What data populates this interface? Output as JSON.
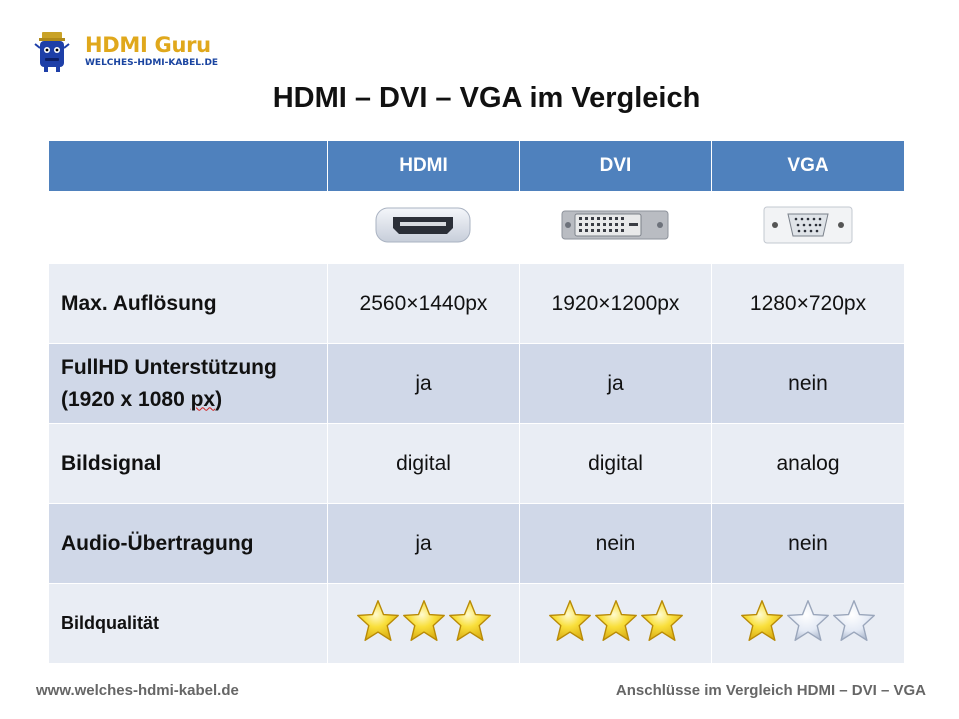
{
  "logo": {
    "title": "HDMI Guru",
    "subtitle": "WELCHES-HDMI-KABEL.DE"
  },
  "title": "HDMI – DVI – VGA im Vergleich",
  "table": {
    "headers": [
      "",
      "HDMI",
      "DVI",
      "VGA"
    ],
    "rows": [
      {
        "label": "Max. Auflösung",
        "values": [
          "2560×1440px",
          "1920×1200px",
          "1280×720px"
        ]
      },
      {
        "label_line1": "FullHD Unterstützung",
        "label_line2_pre": "(1920 x 1080 ",
        "label_line2_wavy": "px",
        "label_line2_post": ")",
        "values": [
          "ja",
          "ja",
          "nein"
        ]
      },
      {
        "label": "Bildsignal",
        "values": [
          "digital",
          "digital",
          "analog"
        ]
      },
      {
        "label": "Audio-Übertragung",
        "values": [
          "ja",
          "nein",
          "nein"
        ]
      },
      {
        "label": "Bildqualität",
        "ratings": [
          3,
          3,
          1
        ],
        "max_rating": 3
      }
    ]
  },
  "colors": {
    "header_bg": "#4f81bd",
    "row_light": "#e9edf4",
    "row_dark": "#d0d8e8",
    "star_filled": "#f7d21e",
    "star_empty": "#dfe6f3"
  },
  "icons": {
    "connectors": [
      "hdmi-connector-icon",
      "dvi-connector-icon",
      "vga-connector-icon"
    ]
  },
  "footer": {
    "left": "www.welches-hdmi-kabel.de",
    "right": "Anschlüsse im Vergleich HDMI – DVI – VGA"
  }
}
